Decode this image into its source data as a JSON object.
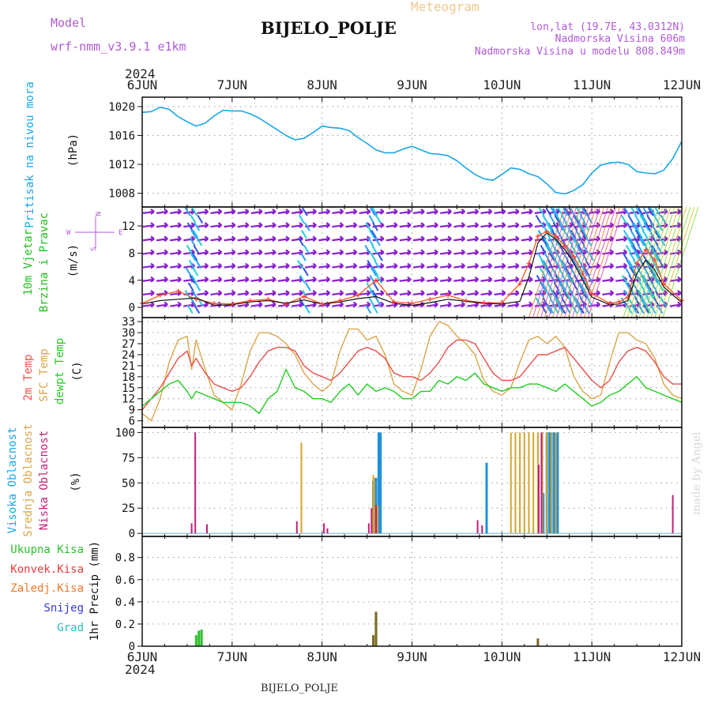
{
  "header": {
    "model_label": "Model",
    "model_name": "wrf-nmm_v3.9.1 e1km",
    "product": "Meteogram",
    "station": "BIJELO_POLJE",
    "lonlat": "lon,lat (19.7E, 43.0312N)",
    "elevation": "Nadmorska Visina 606m",
    "model_elevation": "Nadmorska Visina u modelu 808.849m",
    "year_top": "2024",
    "year_bottom": "2024",
    "station_footer": "BIJELO_POLJE",
    "credit": "made by Angel"
  },
  "panel_labels": {
    "pressure": [
      "Pritisak na nivou mora"
    ],
    "pressure_unit": "(hPa)",
    "wind": [
      "10m Vjetar",
      "Brzina i Pravac"
    ],
    "wind_unit": "(m/s)",
    "wind_compass": {
      "n": "N",
      "s": "S",
      "e": "E",
      "w": "W"
    },
    "temp": [
      "2m Temp",
      "SFC Temp",
      "dewpt Temp"
    ],
    "temp_unit": "(C)",
    "cloud": [
      "Visoka Oblacnost",
      "Srednja Oblacnost",
      "Niska Oblacnost"
    ],
    "cloud_unit": "(%)",
    "precip_legend": [
      "Ukupna Kisa",
      "Konvek.Kisa",
      "Zaledj.Kisa",
      "Snijeg",
      "Grad"
    ],
    "precip_unit": "1hr Precip (mm)"
  },
  "colors": {
    "pressure": "#1aa7e6",
    "t2m": "#e8504a",
    "tsfc": "#d9a64a",
    "dewpt": "#22cc22",
    "cloud_high": "#1e90dd",
    "cloud_mid": "#d4a52a",
    "cloud_low": "#c41f7a",
    "precip_total": "#2fbf2f",
    "precip_conv": "#e83d3d",
    "precip_frz": "#f07a2a",
    "precip_snow": "#3a3ad6",
    "precip_hail": "#2ac0c0",
    "wind_label": "#1fbf1f",
    "purple_text": "#b05ad8"
  },
  "chart_data": [
    {
      "type": "line",
      "name": "pressure",
      "categories": [
        "6JUN",
        "7JUN",
        "8JUN",
        "9JUN",
        "10JUN",
        "11JUN",
        "12JUN"
      ],
      "ylim": [
        1006,
        1022
      ],
      "yticks": [
        1008,
        1012,
        1016,
        1020
      ],
      "x": [
        0,
        0.1,
        0.2,
        0.3,
        0.4,
        0.5,
        0.6,
        0.7,
        0.8,
        0.9,
        1.0,
        1.1,
        1.2,
        1.3,
        1.4,
        1.5,
        1.6,
        1.7,
        1.8,
        1.9,
        2.0,
        2.1,
        2.2,
        2.3,
        2.4,
        2.5,
        2.6,
        2.7,
        2.8,
        2.9,
        3.0,
        3.1,
        3.2,
        3.3,
        3.4,
        3.5,
        3.6,
        3.7,
        3.8,
        3.9,
        4.0,
        4.1,
        4.2,
        4.3,
        4.4,
        4.5,
        4.6,
        4.7,
        4.8,
        4.9,
        5.0,
        5.1,
        5.2,
        5.3,
        5.4,
        5.5,
        5.6,
        5.7,
        5.8,
        5.9,
        6.0
      ],
      "series": [
        {
          "values": [
            1019.2,
            1019.3,
            1019.9,
            1019.6,
            1018.6,
            1017.9,
            1017.3,
            1017.7,
            1018.7,
            1019.5,
            1019.4,
            1019.4,
            1019.0,
            1018.4,
            1017.6,
            1016.8,
            1016.0,
            1015.4,
            1015.6,
            1016.4,
            1017.3,
            1017.1,
            1017.0,
            1016.7,
            1015.7,
            1014.9,
            1014.0,
            1013.6,
            1013.6,
            1014.1,
            1014.5,
            1014.0,
            1013.5,
            1013.4,
            1013.2,
            1012.5,
            1011.5,
            1010.6,
            1010.0,
            1009.8,
            1010.6,
            1011.5,
            1011.3,
            1010.7,
            1010.3,
            1009.3,
            1008.1,
            1007.9,
            1008.4,
            1009.2,
            1010.8,
            1011.9,
            1012.2,
            1012.3,
            1012.0,
            1011.0,
            1010.8,
            1010.7,
            1011.2,
            1012.8,
            1015.2
          ]
        }
      ]
    },
    {
      "type": "line",
      "name": "wind",
      "ylim": [
        -1,
        15
      ],
      "yticks": [
        0,
        4,
        8,
        12
      ],
      "x": [
        0,
        0.2,
        0.4,
        0.6,
        0.8,
        1.0,
        1.2,
        1.4,
        1.6,
        1.8,
        2.0,
        2.2,
        2.4,
        2.6,
        2.8,
        3.0,
        3.2,
        3.4,
        3.6,
        3.8,
        4.0,
        4.2,
        4.3,
        4.4,
        4.5,
        4.6,
        4.7,
        4.8,
        4.9,
        5.0,
        5.2,
        5.3,
        5.4,
        5.5,
        5.6,
        5.7,
        5.8,
        6.0
      ],
      "series": [
        {
          "name": "speed",
          "values": [
            0.5,
            1.0,
            1.2,
            1.4,
            0.3,
            0.4,
            0.8,
            1.0,
            0.6,
            1.1,
            0.5,
            0.8,
            1.3,
            1.6,
            0.6,
            0.3,
            0.7,
            1.2,
            0.9,
            0.6,
            0.5,
            0.9,
            4.5,
            9.5,
            11,
            10.0,
            8.5,
            6.5,
            4.0,
            1.5,
            0.4,
            0.5,
            1.0,
            5.0,
            7.0,
            5.5,
            3.0,
            0.7
          ]
        },
        {
          "name": "gust",
          "values": [
            0.6,
            1.8,
            2.4,
            1.2,
            0.6,
            0.5,
            1.0,
            1.2,
            0.5,
            1.6,
            0.5,
            1.0,
            1.8,
            4.0,
            0.8,
            0.6,
            1.2,
            1.8,
            1.0,
            0.7,
            0.7,
            3.5,
            6.5,
            10.5,
            11.2,
            10.5,
            9.0,
            7.5,
            5.0,
            2.0,
            0.6,
            0.8,
            1.5,
            6.5,
            8.5,
            7.0,
            3.5,
            1.0
          ]
        }
      ]
    },
    {
      "type": "line",
      "name": "temperature",
      "ylim": [
        4,
        34
      ],
      "yticks": [
        6,
        9,
        12,
        15,
        18,
        21,
        24,
        27,
        30,
        33
      ],
      "x": [
        0,
        0.1,
        0.2,
        0.3,
        0.4,
        0.5,
        0.55,
        0.6,
        0.7,
        0.8,
        0.9,
        1.0,
        1.1,
        1.2,
        1.3,
        1.4,
        1.5,
        1.6,
        1.7,
        1.8,
        1.9,
        2.0,
        2.1,
        2.2,
        2.3,
        2.4,
        2.5,
        2.6,
        2.7,
        2.8,
        2.9,
        3.0,
        3.1,
        3.2,
        3.3,
        3.4,
        3.5,
        3.6,
        3.7,
        3.8,
        3.9,
        4.0,
        4.1,
        4.2,
        4.3,
        4.4,
        4.5,
        4.6,
        4.7,
        4.8,
        4.9,
        5.0,
        5.1,
        5.2,
        5.3,
        5.4,
        5.5,
        5.6,
        5.7,
        5.8,
        5.9,
        6.0
      ],
      "series": [
        {
          "name": "2m",
          "values": [
            9,
            12,
            15,
            19,
            23,
            25,
            21,
            23,
            19,
            16,
            15,
            14,
            15,
            18,
            22,
            25,
            26,
            26,
            25,
            21,
            19,
            18,
            17,
            19,
            22,
            25,
            26,
            25,
            23,
            19,
            18,
            18,
            17,
            19,
            22,
            26,
            28,
            28,
            27,
            23,
            19,
            17,
            17,
            18,
            21,
            24,
            24,
            25,
            26,
            23,
            20,
            17,
            15,
            17,
            22,
            25,
            26,
            25,
            22,
            18,
            16,
            16
          ]
        },
        {
          "name": "sfc",
          "values": [
            8,
            6,
            12,
            22,
            28,
            29,
            20,
            28,
            20,
            13,
            11,
            9,
            16,
            25,
            30,
            30,
            29,
            27,
            24,
            19,
            16,
            14,
            16,
            25,
            31,
            31,
            28,
            29,
            24,
            16,
            14,
            13,
            20,
            29,
            33,
            32,
            29,
            27,
            24,
            17,
            14,
            13,
            15,
            22,
            28,
            29,
            27,
            29,
            26,
            18,
            14,
            12,
            13,
            22,
            30,
            30,
            28,
            27,
            23,
            16,
            13,
            12
          ]
        },
        {
          "name": "dewpt",
          "values": [
            10,
            12,
            14,
            16,
            17,
            14,
            12,
            14,
            13,
            12,
            11,
            11,
            11,
            10,
            8,
            12,
            14,
            20,
            15,
            14,
            12,
            12,
            11,
            14,
            16,
            13,
            16,
            14,
            15,
            14,
            12,
            12,
            14,
            14,
            17,
            16,
            18,
            17,
            19,
            16,
            15,
            14,
            15,
            15,
            16,
            16,
            15,
            14,
            16,
            14,
            12,
            10,
            11,
            13,
            14,
            16,
            18,
            15,
            14,
            13,
            12,
            11
          ]
        }
      ]
    },
    {
      "type": "bar",
      "name": "cloud",
      "ylim": [
        0,
        100
      ],
      "yticks": [
        0,
        25,
        50,
        75,
        100
      ],
      "series": [
        {
          "name": "Visoka Oblacnost",
          "x": [
            2.57,
            2.6,
            2.63,
            2.65,
            3.83,
            4.46,
            4.5,
            4.53,
            4.55,
            4.58,
            4.62
          ],
          "values": [
            52,
            55,
            100,
            100,
            70,
            40,
            100,
            100,
            100,
            100,
            100
          ]
        },
        {
          "name": "Srednja Oblacnost",
          "x": [
            1.77,
            2.57,
            2.58,
            2.62,
            4.1,
            4.15,
            4.2,
            4.25,
            4.3,
            4.35,
            4.4,
            4.45,
            4.5,
            4.55,
            4.6
          ],
          "values": [
            90,
            58,
            55,
            28,
            100,
            100,
            100,
            100,
            100,
            100,
            100,
            100,
            100,
            100,
            100
          ]
        },
        {
          "name": "Niska Oblacnost",
          "x": [
            0.55,
            0.59,
            0.72,
            1.72,
            2.02,
            2.06,
            2.52,
            2.55,
            2.6,
            3.73,
            3.78,
            4.41,
            4.44,
            5.9
          ],
          "values": [
            10,
            100,
            9,
            12,
            10,
            5,
            10,
            25,
            28,
            13,
            8,
            68,
            100,
            38
          ]
        }
      ]
    },
    {
      "type": "bar",
      "name": "precip",
      "ylim": [
        0,
        1.0
      ],
      "yticks": [
        0,
        0.2,
        0.4,
        0.6,
        0.8
      ],
      "series": [
        {
          "name": "Ukupna Kisa",
          "x": [
            0.6,
            0.63,
            0.66,
            2.57,
            2.6,
            4.4
          ],
          "values": [
            0.1,
            0.14,
            0.15,
            0.1,
            0.31,
            0.07
          ]
        },
        {
          "name": "Konvek.Kisa",
          "x": [
            2.6
          ],
          "values": [
            0.31
          ]
        }
      ]
    }
  ]
}
